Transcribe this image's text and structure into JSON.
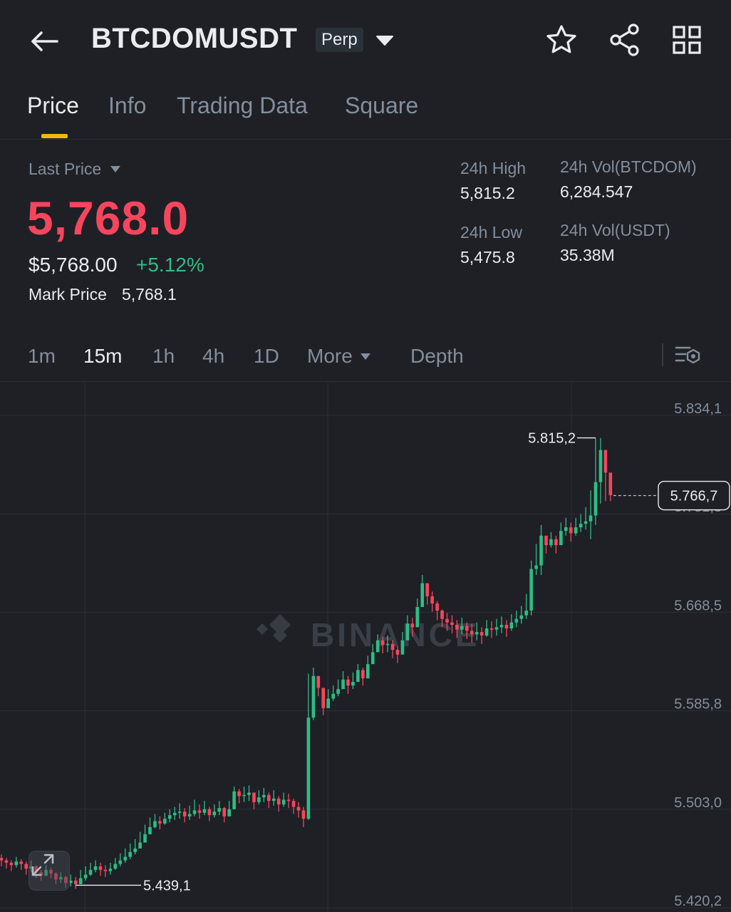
{
  "header": {
    "symbol": "BTCDOMUSDT",
    "badge": "Perp",
    "icons": [
      "back-arrow-icon",
      "caret-down-icon",
      "star-icon",
      "share-icon",
      "grid-icon"
    ]
  },
  "tabs": [
    {
      "label": "Price",
      "active": true
    },
    {
      "label": "Info",
      "active": false
    },
    {
      "label": "Trading Data",
      "active": false
    },
    {
      "label": "Square",
      "active": false
    }
  ],
  "price": {
    "last_label": "Last Price",
    "last": "5,768.0",
    "fiat": "$5,768.00",
    "change": "+5.12%",
    "mark_label": "Mark Price",
    "mark": "5,768.1"
  },
  "stats": {
    "high_label": "24h High",
    "high": "5,815.2",
    "low_label": "24h Low",
    "low": "5,475.8",
    "vol_base_label": "24h Vol(BTCDOM)",
    "vol_base": "6,284.547",
    "vol_quote_label": "24h Vol(USDT)",
    "vol_quote": "35.38M"
  },
  "intervals": {
    "items": [
      {
        "label": "1m",
        "active": false
      },
      {
        "label": "15m",
        "active": true
      },
      {
        "label": "1h",
        "active": false
      },
      {
        "label": "4h",
        "active": false
      },
      {
        "label": "1D",
        "active": false
      },
      {
        "label": "More",
        "active": false
      }
    ],
    "depth": "Depth"
  },
  "colors": {
    "up": "#2ebd85",
    "down": "#f6465d",
    "accent": "#f0b90b",
    "background": "#1e2026"
  },
  "chart_data": {
    "type": "candlestick",
    "interval": "15m",
    "y_ticks": [
      "5.834,1",
      "5.751,3",
      "5.668,5",
      "5.585,8",
      "5.503,0",
      "5.420,2"
    ],
    "ylim": [
      5420.2,
      5834.1
    ],
    "max_annotation": {
      "label": "5.815,2",
      "value": 5815.2
    },
    "min_annotation": {
      "label": "5.439,1",
      "value": 5439.1
    },
    "current_label": "5.766,7",
    "current_value": 5766.7,
    "watermark": "BINANCE",
    "close": [
      5460,
      5458,
      5456,
      5459,
      5457,
      5453,
      5455,
      5450,
      5447,
      5452,
      5449,
      5444,
      5446,
      5441,
      5443,
      5440,
      5445,
      5448,
      5452,
      5455,
      5452,
      5451,
      5453,
      5457,
      5460,
      5463,
      5467,
      5470,
      5475,
      5482,
      5488,
      5493,
      5491,
      5495,
      5498,
      5500,
      5501,
      5497,
      5499,
      5502,
      5500,
      5503,
      5498,
      5501,
      5504,
      5497,
      5503,
      5518,
      5514,
      5515,
      5517,
      5509,
      5513,
      5515,
      5510,
      5512,
      5507,
      5511,
      5510,
      5505,
      5502,
      5495,
      5580,
      5615,
      5605,
      5588,
      5596,
      5600,
      5604,
      5612,
      5607,
      5610,
      5620,
      5613,
      5625,
      5635,
      5645,
      5641,
      5642,
      5637,
      5633,
      5645,
      5659,
      5656,
      5673,
      5693,
      5682,
      5676,
      5670,
      5663,
      5660,
      5658,
      5654,
      5657,
      5653,
      5650,
      5652,
      5649,
      5655,
      5654,
      5656,
      5658,
      5655,
      5660,
      5663,
      5666,
      5670,
      5705,
      5708,
      5733,
      5725,
      5730,
      5725,
      5737,
      5740,
      5735,
      5740,
      5743,
      5745,
      5750,
      5778,
      5805,
      5786,
      5767
    ],
    "high": [
      5465,
      5462,
      5460,
      5463,
      5461,
      5459,
      5460,
      5456,
      5452,
      5456,
      5454,
      5450,
      5450,
      5447,
      5448,
      5446,
      5452,
      5455,
      5458,
      5460,
      5458,
      5456,
      5458,
      5462,
      5466,
      5470,
      5474,
      5478,
      5484,
      5490,
      5496,
      5499,
      5497,
      5500,
      5503,
      5505,
      5508,
      5504,
      5506,
      5511,
      5507,
      5510,
      5505,
      5507,
      5510,
      5505,
      5510,
      5522,
      5520,
      5522,
      5523,
      5517,
      5519,
      5521,
      5517,
      5519,
      5514,
      5517,
      5516,
      5512,
      5509,
      5505,
      5617,
      5622,
      5615,
      5600,
      5604,
      5607,
      5612,
      5619,
      5615,
      5618,
      5625,
      5622,
      5632,
      5642,
      5650,
      5648,
      5649,
      5645,
      5640,
      5652,
      5666,
      5664,
      5680,
      5700,
      5690,
      5686,
      5678,
      5671,
      5668,
      5666,
      5662,
      5664,
      5660,
      5659,
      5660,
      5656,
      5662,
      5661,
      5663,
      5665,
      5662,
      5667,
      5670,
      5674,
      5684,
      5712,
      5726,
      5742,
      5733,
      5736,
      5733,
      5744,
      5748,
      5744,
      5748,
      5751,
      5757,
      5771,
      5815,
      5815,
      5795,
      5776
    ],
    "low": [
      5455,
      5453,
      5451,
      5454,
      5452,
      5448,
      5450,
      5445,
      5443,
      5447,
      5445,
      5440,
      5441,
      5437,
      5438,
      5436,
      5440,
      5443,
      5447,
      5450,
      5447,
      5446,
      5448,
      5452,
      5455,
      5458,
      5461,
      5465,
      5470,
      5476,
      5482,
      5487,
      5486,
      5490,
      5492,
      5494,
      5495,
      5492,
      5494,
      5497,
      5495,
      5498,
      5493,
      5496,
      5498,
      5492,
      5497,
      5508,
      5508,
      5509,
      5510,
      5503,
      5507,
      5509,
      5504,
      5506,
      5501,
      5505,
      5504,
      5499,
      5496,
      5488,
      5494,
      5578,
      5598,
      5582,
      5590,
      5594,
      5598,
      5606,
      5600,
      5604,
      5612,
      5607,
      5618,
      5628,
      5637,
      5634,
      5635,
      5630,
      5626,
      5638,
      5651,
      5648,
      5665,
      5686,
      5675,
      5669,
      5662,
      5656,
      5653,
      5651,
      5647,
      5650,
      5646,
      5643,
      5645,
      5642,
      5648,
      5647,
      5649,
      5651,
      5648,
      5653,
      5656,
      5659,
      5663,
      5666,
      5700,
      5700,
      5718,
      5723,
      5718,
      5730,
      5733,
      5728,
      5733,
      5736,
      5738,
      5730,
      5742,
      5760,
      5762,
      5762
    ]
  }
}
